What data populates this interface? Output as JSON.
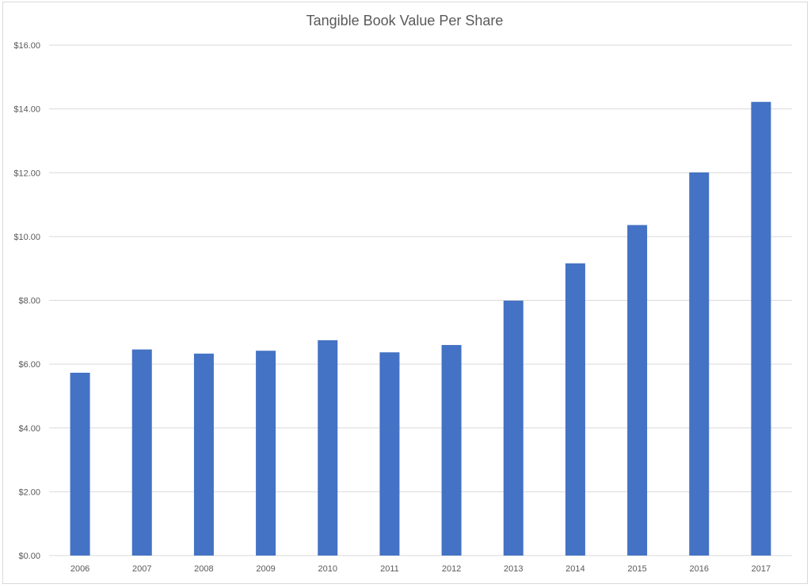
{
  "chart_data": {
    "type": "bar",
    "title": "Tangible Book Value Per Share",
    "xlabel": "",
    "ylabel": "",
    "categories": [
      "2006",
      "2007",
      "2008",
      "2009",
      "2010",
      "2011",
      "2012",
      "2013",
      "2014",
      "2015",
      "2016",
      "2017"
    ],
    "values": [
      5.73,
      6.46,
      6.33,
      6.42,
      6.75,
      6.37,
      6.6,
      7.99,
      9.16,
      10.36,
      12.01,
      14.22
    ],
    "ylim": [
      0,
      16
    ],
    "yticks": [
      "$0.00",
      "$2.00",
      "$4.00",
      "$6.00",
      "$8.00",
      "$10.00",
      "$12.00",
      "$14.00",
      "$16.00"
    ],
    "grid": true,
    "legend": "none",
    "bar_color": "#4472c4",
    "grid_color": "#d9d9d9"
  }
}
